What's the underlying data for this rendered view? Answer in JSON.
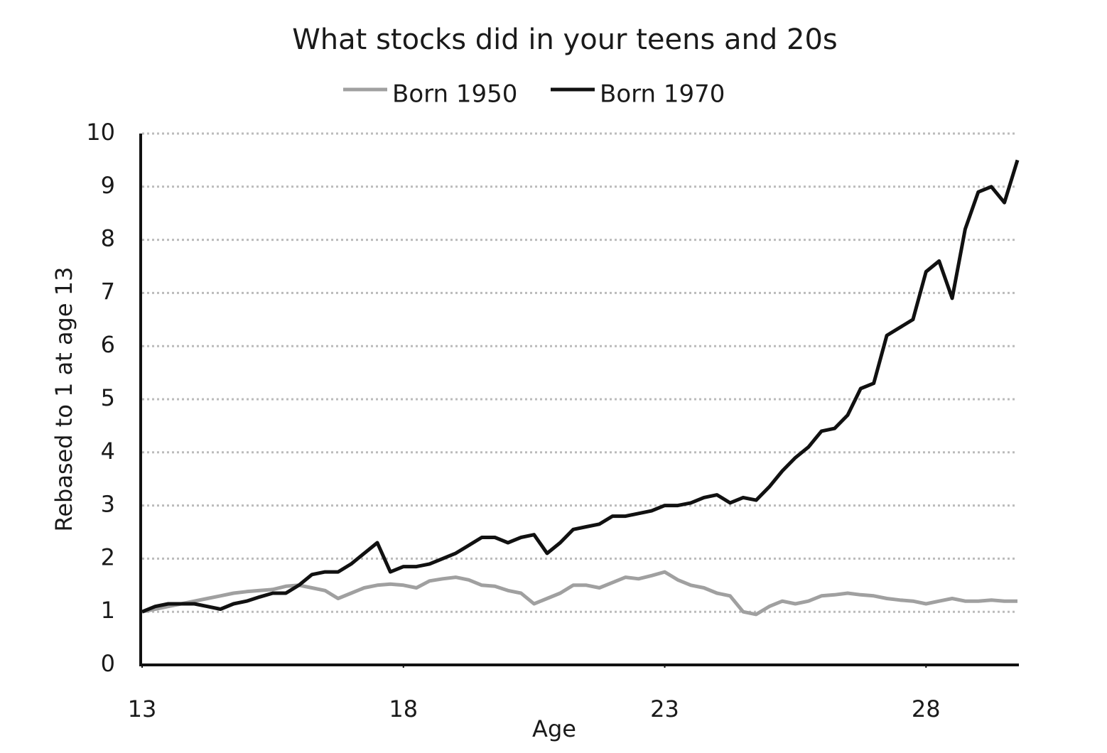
{
  "chart_data": {
    "type": "line",
    "title": "What stocks did in your teens and 20s",
    "xlabel": "Age",
    "ylabel": "Rebased to 1 at age 13",
    "x": [
      13,
      13.25,
      13.5,
      13.75,
      14,
      14.25,
      14.5,
      14.75,
      15,
      15.25,
      15.5,
      15.75,
      16,
      16.25,
      16.5,
      16.75,
      17,
      17.25,
      17.5,
      17.75,
      18,
      18.25,
      18.5,
      18.75,
      19,
      19.25,
      19.5,
      19.75,
      20,
      20.25,
      20.5,
      20.75,
      21,
      21.25,
      21.5,
      21.75,
      22,
      22.25,
      22.5,
      22.75,
      23,
      23.25,
      23.5,
      23.75,
      24,
      24.25,
      24.5,
      24.75,
      25,
      25.25,
      25.5,
      25.75,
      26,
      26.25,
      26.5,
      26.75,
      27,
      27.25,
      27.5,
      27.75,
      28,
      28.25,
      28.5,
      28.75,
      29,
      29.25,
      29.5,
      29.75
    ],
    "series": [
      {
        "name": "Born 1950",
        "color": "#a0a0a0",
        "values": [
          1.0,
          1.05,
          1.1,
          1.15,
          1.2,
          1.25,
          1.3,
          1.35,
          1.38,
          1.4,
          1.42,
          1.48,
          1.5,
          1.45,
          1.4,
          1.25,
          1.35,
          1.45,
          1.5,
          1.52,
          1.5,
          1.45,
          1.58,
          1.62,
          1.65,
          1.6,
          1.5,
          1.48,
          1.4,
          1.35,
          1.15,
          1.25,
          1.35,
          1.5,
          1.5,
          1.45,
          1.55,
          1.65,
          1.62,
          1.68,
          1.75,
          1.6,
          1.5,
          1.45,
          1.35,
          1.3,
          1.0,
          0.95,
          1.1,
          1.2,
          1.15,
          1.2,
          1.3,
          1.32,
          1.35,
          1.32,
          1.3,
          1.25,
          1.22,
          1.2,
          1.15,
          1.2,
          1.25,
          1.2,
          1.2,
          1.22,
          1.2,
          1.2
        ]
      },
      {
        "name": "Born 1970",
        "color": "#111111",
        "values": [
          1.0,
          1.1,
          1.15,
          1.15,
          1.15,
          1.1,
          1.05,
          1.15,
          1.2,
          1.28,
          1.35,
          1.35,
          1.5,
          1.7,
          1.75,
          1.75,
          1.9,
          2.1,
          2.3,
          1.75,
          1.85,
          1.85,
          1.9,
          2.0,
          2.1,
          2.25,
          2.4,
          2.4,
          2.3,
          2.4,
          2.45,
          2.1,
          2.3,
          2.55,
          2.6,
          2.65,
          2.8,
          2.8,
          2.85,
          2.9,
          3.0,
          3.0,
          3.05,
          3.15,
          3.2,
          3.05,
          3.15,
          3.1,
          3.35,
          3.65,
          3.9,
          4.1,
          4.4,
          4.45,
          4.7,
          5.2,
          5.3,
          6.2,
          6.35,
          6.5,
          7.4,
          7.6,
          6.9,
          8.2,
          8.9,
          9.0,
          8.7,
          9.5
        ]
      }
    ],
    "xlim": [
      13,
      29.75
    ],
    "xticks": [
      13,
      18,
      23,
      28
    ],
    "ylim": [
      0,
      10
    ],
    "yticks": [
      0,
      1,
      2,
      3,
      4,
      5,
      6,
      7,
      8,
      9,
      10
    ],
    "grid": true,
    "legend": "top"
  }
}
